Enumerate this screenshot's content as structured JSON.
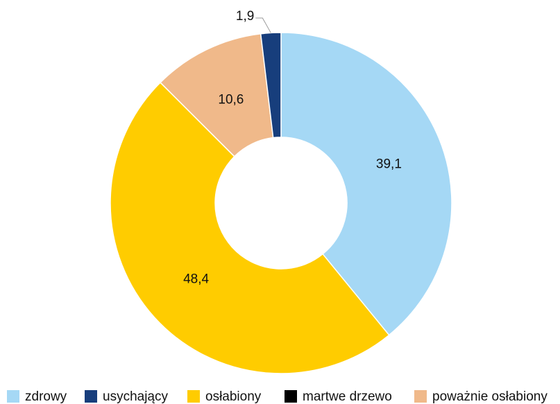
{
  "chart_data": {
    "type": "donut",
    "categories": [
      "zdrowy",
      "osłabiony",
      "poważnie osłabiony",
      "usychający",
      "martwe drzewo"
    ],
    "values": [
      39.1,
      48.4,
      10.6,
      1.9,
      0
    ],
    "value_labels": [
      "39,1",
      "48,4",
      "10,6",
      "1,9",
      null
    ],
    "colors": [
      "#a5d8f5",
      "#ffcc00",
      "#f0b98a",
      "#173e7c",
      "#000000"
    ]
  }
}
